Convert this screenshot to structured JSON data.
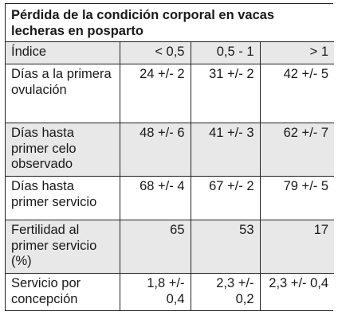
{
  "table": {
    "title": "Pérdida de la condición corporal en vacas lecheras en posparto",
    "header": {
      "label": "Índice",
      "columns": [
        "< 0,5",
        "0,5 - 1",
        "> 1"
      ]
    },
    "rows": [
      {
        "label": "Días a la primera ovulación",
        "values": [
          "24 +/- 2",
          "31 +/- 2",
          "42 +/- 5"
        ]
      },
      {
        "label": "Días hasta primer celo observado",
        "values": [
          "48 +/- 6",
          "41 +/- 3",
          "62 +/- 7"
        ]
      },
      {
        "label": "Días hasta primer servicio",
        "values": [
          "68 +/- 4",
          "67 +/- 2",
          "79 +/- 5"
        ]
      },
      {
        "label": "Fertilidad al primer servicio (%)",
        "values": [
          "65",
          "53",
          "17"
        ]
      },
      {
        "label": "Servicio por concepción",
        "values": [
          "1,8 +/- 0,4",
          "2,3 +/- 0,2",
          "2,3 +/- 0,4"
        ]
      }
    ],
    "colors": {
      "shaded_row": "#e8e8e8",
      "border": "#222222"
    }
  }
}
